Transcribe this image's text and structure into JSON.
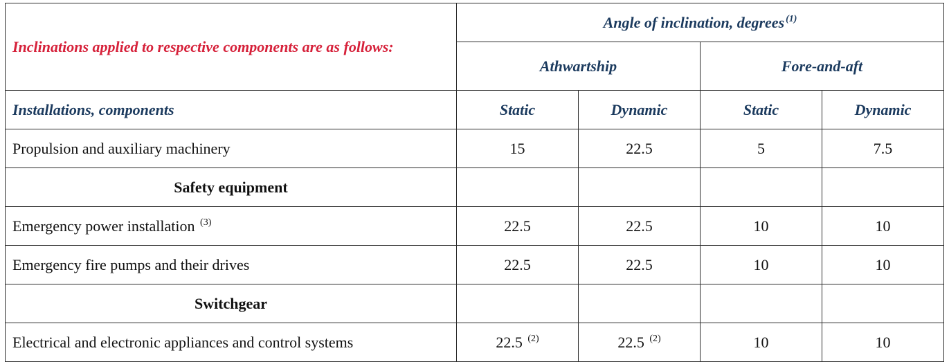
{
  "table": {
    "intro": "Inclinations applied to respective components are as follows:",
    "angle_header": "Angle of inclination, degrees",
    "angle_note": "(1)",
    "athwartship": "Athwartship",
    "fore_and_aft": "Fore-and-aft",
    "installations_header": "Installations, components",
    "static": "Static",
    "dynamic": "Dynamic",
    "rows": [
      {
        "label": "Propulsion and auxiliary machinery",
        "ath_static": "15",
        "ath_dynamic": "22.5",
        "fa_static": "5",
        "fa_dynamic": "7.5"
      },
      {
        "section": "Safety equipment"
      },
      {
        "label": "Emergency power installation",
        "note": "(3)",
        "ath_static": "22.5",
        "ath_dynamic": "22.5",
        "fa_static": "10",
        "fa_dynamic": "10"
      },
      {
        "label": "Emergency fire pumps and their drives",
        "ath_static": "22.5",
        "ath_dynamic": "22.5",
        "fa_static": "10",
        "fa_dynamic": "10"
      },
      {
        "section": "Switchgear"
      },
      {
        "label": "Electrical and electronic appliances and control systems",
        "ath_static": "22.5",
        "ath_static_note": "(2)",
        "ath_dynamic": "22.5",
        "ath_dynamic_note": "(2)",
        "fa_static": "10",
        "fa_dynamic": "10"
      }
    ]
  }
}
